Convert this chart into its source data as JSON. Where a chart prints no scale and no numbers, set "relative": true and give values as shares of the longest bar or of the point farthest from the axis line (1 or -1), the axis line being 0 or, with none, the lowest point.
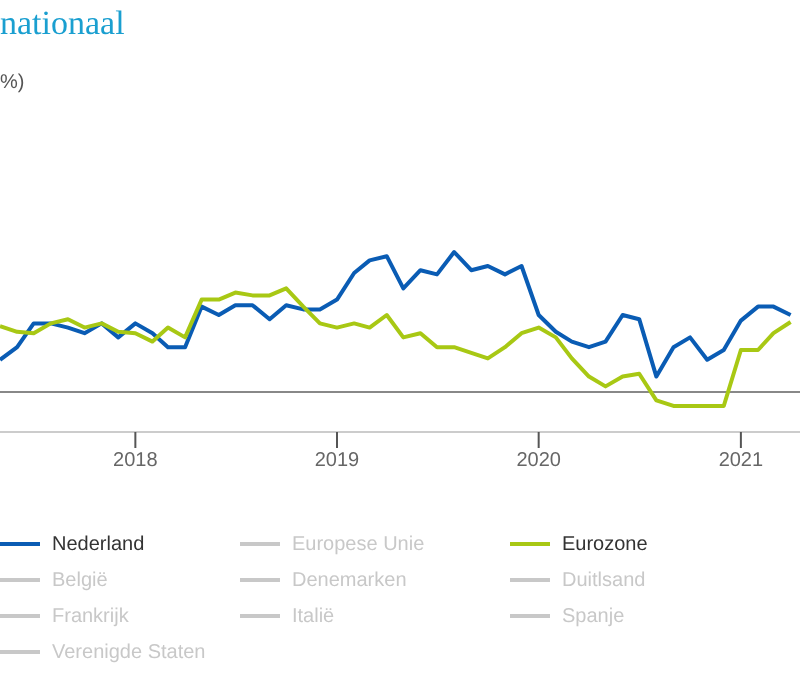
{
  "chart_data": {
    "type": "line",
    "title": "nationaal",
    "annotations": [
      "%)"
    ],
    "relative": true,
    "x": [
      "2017-05",
      "2017-06",
      "2017-07",
      "2017-08",
      "2017-09",
      "2017-10",
      "2017-11",
      "2017-12",
      "2018-01",
      "2018-02",
      "2018-03",
      "2018-04",
      "2018-05",
      "2018-06",
      "2018-07",
      "2018-08",
      "2018-09",
      "2018-10",
      "2018-11",
      "2018-12",
      "2019-01",
      "2019-02",
      "2019-03",
      "2019-04",
      "2019-05",
      "2019-06",
      "2019-07",
      "2019-08",
      "2019-09",
      "2019-10",
      "2019-11",
      "2019-12",
      "2020-01",
      "2020-02",
      "2020-03",
      "2020-04",
      "2020-05",
      "2020-06",
      "2020-07",
      "2020-08",
      "2020-09",
      "2020-10",
      "2020-11",
      "2020-12",
      "2021-01",
      "2021-02",
      "2021-03",
      "2021-04"
    ],
    "xlim": [
      "2017-05",
      "2021-04-18"
    ],
    "xticks": [
      "2018",
      "2019",
      "2020",
      "2021"
    ],
    "legend": "bottom",
    "series": [
      {
        "name": "Nederland",
        "color": "#0a5cb4",
        "values": [
          0.23,
          0.32,
          0.49,
          0.49,
          0.46,
          0.42,
          0.49,
          0.39,
          0.49,
          0.42,
          0.32,
          0.32,
          0.61,
          0.55,
          0.62,
          0.62,
          0.52,
          0.62,
          0.59,
          0.59,
          0.66,
          0.85,
          0.94,
          0.97,
          0.74,
          0.87,
          0.84,
          1,
          0.87,
          0.9,
          0.84,
          0.9,
          0.55,
          0.43,
          0.36,
          0.32,
          0.36,
          0.55,
          0.52,
          0.11,
          0.32,
          0.39,
          0.23,
          0.3,
          0.51,
          0.61,
          0.61,
          0.55
        ]
      },
      {
        "name": "Europese Unie",
        "color": "#c8c8c8",
        "values": [
          null,
          null,
          null,
          null,
          null,
          null,
          null,
          null,
          null,
          null,
          null,
          null,
          null,
          null,
          null,
          null,
          null,
          null,
          null,
          null,
          null,
          null,
          null,
          null,
          null,
          null,
          null,
          null,
          null,
          null,
          null,
          null,
          null,
          null,
          null,
          null,
          null,
          null,
          null,
          null,
          null,
          null,
          null,
          null,
          null,
          null,
          null,
          null
        ]
      },
      {
        "name": "Eurozone",
        "color": "#a8c814",
        "values": [
          0.47,
          0.43,
          0.42,
          0.49,
          0.52,
          0.46,
          0.49,
          0.43,
          0.42,
          0.36,
          0.46,
          0.39,
          0.66,
          0.66,
          0.71,
          0.69,
          0.69,
          0.74,
          0.61,
          0.49,
          0.46,
          0.49,
          0.46,
          0.55,
          0.39,
          0.42,
          0.32,
          0.32,
          0.28,
          0.24,
          0.32,
          0.42,
          0.46,
          0.39,
          0.24,
          0.11,
          0.04,
          0.11,
          0.13,
          -0.06,
          -0.1,
          -0.1,
          -0.1,
          -0.1,
          0.3,
          0.3,
          0.42,
          0.5
        ]
      },
      {
        "name": "België",
        "color": "#c8c8c8",
        "values": [
          null,
          null,
          null,
          null,
          null,
          null,
          null,
          null,
          null,
          null,
          null,
          null,
          null,
          null,
          null,
          null,
          null,
          null,
          null,
          null,
          null,
          null,
          null,
          null,
          null,
          null,
          null,
          null,
          null,
          null,
          null,
          null,
          null,
          null,
          null,
          null,
          null,
          null,
          null,
          null,
          null,
          null,
          null,
          null,
          null,
          null,
          null,
          null
        ]
      },
      {
        "name": "Denemarken",
        "color": "#c8c8c8",
        "values": [
          null,
          null,
          null,
          null,
          null,
          null,
          null,
          null,
          null,
          null,
          null,
          null,
          null,
          null,
          null,
          null,
          null,
          null,
          null,
          null,
          null,
          null,
          null,
          null,
          null,
          null,
          null,
          null,
          null,
          null,
          null,
          null,
          null,
          null,
          null,
          null,
          null,
          null,
          null,
          null,
          null,
          null,
          null,
          null,
          null,
          null,
          null,
          null
        ]
      },
      {
        "name": "Duitlsand",
        "color": "#c8c8c8",
        "values": [
          null,
          null,
          null,
          null,
          null,
          null,
          null,
          null,
          null,
          null,
          null,
          null,
          null,
          null,
          null,
          null,
          null,
          null,
          null,
          null,
          null,
          null,
          null,
          null,
          null,
          null,
          null,
          null,
          null,
          null,
          null,
          null,
          null,
          null,
          null,
          null,
          null,
          null,
          null,
          null,
          null,
          null,
          null,
          null,
          null,
          null,
          null,
          null
        ]
      },
      {
        "name": "Frankrijk",
        "color": "#c8c8c8",
        "values": [
          null,
          null,
          null,
          null,
          null,
          null,
          null,
          null,
          null,
          null,
          null,
          null,
          null,
          null,
          null,
          null,
          null,
          null,
          null,
          null,
          null,
          null,
          null,
          null,
          null,
          null,
          null,
          null,
          null,
          null,
          null,
          null,
          null,
          null,
          null,
          null,
          null,
          null,
          null,
          null,
          null,
          null,
          null,
          null,
          null,
          null,
          null,
          null
        ]
      },
      {
        "name": "Italië",
        "color": "#c8c8c8",
        "values": [
          null,
          null,
          null,
          null,
          null,
          null,
          null,
          null,
          null,
          null,
          null,
          null,
          null,
          null,
          null,
          null,
          null,
          null,
          null,
          null,
          null,
          null,
          null,
          null,
          null,
          null,
          null,
          null,
          null,
          null,
          null,
          null,
          null,
          null,
          null,
          null,
          null,
          null,
          null,
          null,
          null,
          null,
          null,
          null,
          null,
          null,
          null,
          null
        ]
      },
      {
        "name": "Spanje",
        "color": "#c8c8c8",
        "values": [
          null,
          null,
          null,
          null,
          null,
          null,
          null,
          null,
          null,
          null,
          null,
          null,
          null,
          null,
          null,
          null,
          null,
          null,
          null,
          null,
          null,
          null,
          null,
          null,
          null,
          null,
          null,
          null,
          null,
          null,
          null,
          null,
          null,
          null,
          null,
          null,
          null,
          null,
          null,
          null,
          null,
          null,
          null,
          null,
          null,
          null,
          null,
          null
        ]
      },
      {
        "name": "Verenigde Staten",
        "color": "#c8c8c8",
        "values": [
          null,
          null,
          null,
          null,
          null,
          null,
          null,
          null,
          null,
          null,
          null,
          null,
          null,
          null,
          null,
          null,
          null,
          null,
          null,
          null,
          null,
          null,
          null,
          null,
          null,
          null,
          null,
          null,
          null,
          null,
          null,
          null,
          null,
          null,
          null,
          null,
          null,
          null,
          null,
          null,
          null,
          null,
          null,
          null,
          null,
          null,
          null,
          null
        ]
      }
    ]
  }
}
